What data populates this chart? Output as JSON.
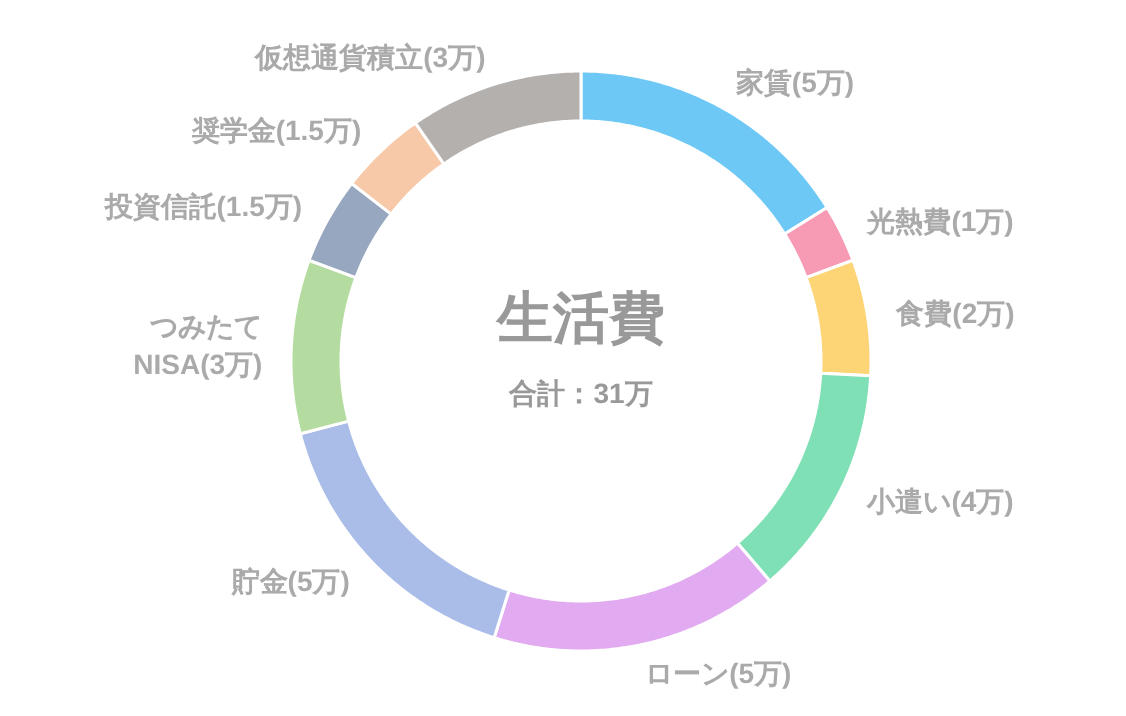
{
  "chart_data": {
    "type": "donut",
    "title": "生活費",
    "subtitle": "合計：31万",
    "categories": [
      "家賃(5万)",
      "光熱費(1万)",
      "食費(2万)",
      "小遣い(4万)",
      "ローン(5万)",
      "貯金(5万)",
      "つみたて\nNISA(3万)",
      "投資信託(1.5万)",
      "奨学金(1.5万)",
      "仮想通貨積立(3万)"
    ],
    "values": [
      5,
      1,
      2,
      4,
      5,
      5,
      3,
      1.5,
      1.5,
      3
    ],
    "colors": [
      "#6ec8f5",
      "#f79bb5",
      "#fdd576",
      "#7fe0b5",
      "#e2aaf0",
      "#a9bde8",
      "#b5dca0",
      "#97a7c0",
      "#f8c9a8",
      "#b4b0ae"
    ]
  }
}
